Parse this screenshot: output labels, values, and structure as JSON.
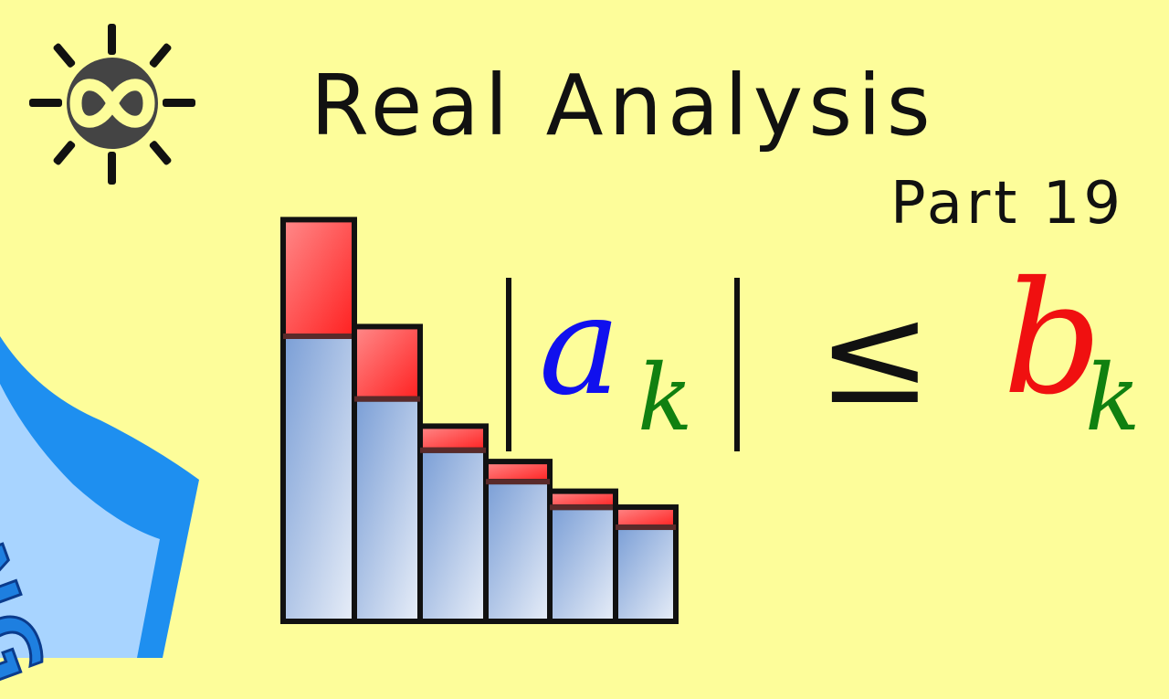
{
  "title": "Real Analysis",
  "part": "Part 19",
  "corner_label": "ENG",
  "logo": {
    "icon": "infinity-sun-icon"
  },
  "formula": {
    "a": "a",
    "k1": "k",
    "leq": "≤",
    "b": "b",
    "k2": "k"
  },
  "colors": {
    "background": "#fdfd9a",
    "a": "#1010ee",
    "k": "#108010",
    "b": "#f01010",
    "ribbon": "#1e8ff0"
  },
  "bars": [
    {
      "blue": 1.0,
      "red": 0.29
    },
    {
      "blue": 0.78,
      "red": 0.18
    },
    {
      "blue": 0.6,
      "red": 0.06
    },
    {
      "blue": 0.49,
      "red": 0.05
    },
    {
      "blue": 0.4,
      "red": 0.04
    },
    {
      "blue": 0.33,
      "red": 0.05
    }
  ]
}
